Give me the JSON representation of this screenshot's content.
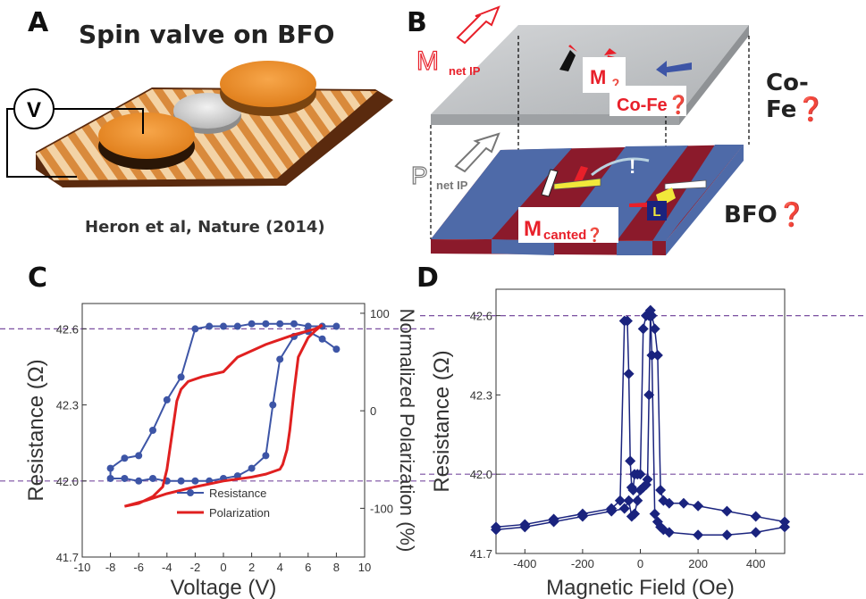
{
  "panels": {
    "a": {
      "letter": "A",
      "title": "Spin valve on BFO",
      "voltmeter_symbol": "V",
      "citation": "Heron et al, Nature (2014)"
    },
    "b": {
      "letter": "B",
      "label_m_net_main": "M",
      "label_m_net_sub": "net IP",
      "label_p_net_main": "P",
      "label_p_net_sub": "net IP",
      "label_m_cofe": "M",
      "label_m_cofe_sub": "❓",
      "label_cofe_red": "Co-Fe❓",
      "label_m_canted_main": "M",
      "label_m_canted_sub": "canted❓",
      "label_exclamation": "!",
      "label_l": "L",
      "layer_cofe": "Co-Fe❓",
      "layer_bfo": "BFO❓",
      "colors": {
        "red_label": "#e8202a",
        "cofe_layer": "#c4c6c8",
        "bfo_blue": "#4e6aa8",
        "bfo_red": "#8b1a2b"
      }
    },
    "c": {
      "letter": "C"
    },
    "d": {
      "letter": "D"
    }
  },
  "chart_data": [
    {
      "type": "line",
      "panel": "C",
      "xlabel": "Voltage (V)",
      "ylabel": "Resistance (Ω)",
      "y2label": "Normalized Polarization (%)",
      "xlim": [
        -10,
        10
      ],
      "ylim": [
        41.7,
        42.7
      ],
      "y2lim": [
        -150,
        110
      ],
      "xticks": [
        "-10",
        "-8",
        "-6",
        "-4",
        "-2",
        "0",
        "2",
        "4",
        "6",
        "8",
        "10"
      ],
      "yticks": [
        "41.7",
        "42.0",
        "42.3",
        "42.6"
      ],
      "y2ticks": [
        "-100",
        "0",
        "100"
      ],
      "reference_lines": [
        42.0,
        42.6
      ],
      "legend": {
        "position": "bottom-left",
        "entries": [
          "Resistance",
          "Polarization"
        ]
      },
      "series": [
        {
          "name": "Resistance",
          "color": "#3d55a6",
          "marker": "circle",
          "x": [
            8,
            7,
            6,
            5,
            4,
            3,
            2,
            1,
            0,
            -1,
            -2,
            -3,
            -4,
            -5,
            -6,
            -7,
            -8,
            -8,
            -7,
            -6,
            -5,
            -4,
            -3,
            -2,
            -1,
            0,
            1,
            2,
            3,
            3.5,
            4,
            5,
            6,
            7,
            8
          ],
          "y": [
            42.61,
            42.61,
            42.61,
            42.62,
            42.62,
            42.62,
            42.62,
            42.61,
            42.61,
            42.61,
            42.6,
            42.41,
            42.32,
            42.2,
            42.1,
            42.09,
            42.05,
            42.01,
            42.01,
            42.0,
            42.01,
            42.0,
            42.0,
            42.0,
            42.0,
            42.01,
            42.02,
            42.05,
            42.1,
            42.3,
            42.48,
            42.57,
            42.59,
            42.56,
            42.52
          ]
        },
        {
          "name": "Polarization",
          "color": "#e02020",
          "marker": "none",
          "x": [
            7,
            6.5,
            6,
            5.3,
            5,
            4.7,
            4.5,
            4.2,
            4,
            3.6,
            3,
            2,
            0,
            -2,
            -4,
            -5.5,
            -7,
            -6,
            -5,
            -4.3,
            -4,
            -3.6,
            -3.3,
            -3,
            -2.5,
            -1.5,
            0,
            1,
            3,
            5,
            6.5,
            7
          ],
          "y": [
            88,
            82,
            75,
            55,
            20,
            -20,
            -40,
            -55,
            -60,
            -62,
            -65,
            -68,
            -72,
            -78,
            -85,
            -92,
            -98,
            -95,
            -88,
            -78,
            -60,
            -20,
            10,
            22,
            30,
            35,
            40,
            55,
            68,
            78,
            84,
            88
          ]
        }
      ]
    },
    {
      "type": "scatter",
      "panel": "D",
      "xlabel": "Magnetic Field (Oe)",
      "ylabel": "Resistance (Ω)",
      "xlim": [
        -500,
        500
      ],
      "ylim": [
        41.7,
        42.7
      ],
      "xticks": [
        "-400",
        "-200",
        "0",
        "200",
        "400"
      ],
      "yticks": [
        "41.7",
        "42.0",
        "42.3",
        "42.6"
      ],
      "reference_lines": [
        42.0,
        42.6
      ],
      "series": [
        {
          "name": "",
          "color": "#1a237e",
          "marker": "diamond",
          "x": [
            -500,
            -400,
            -300,
            -200,
            -100,
            -70,
            -55,
            -45,
            -40,
            -35,
            -30,
            -25,
            -20,
            -10,
            0,
            10,
            20,
            30,
            40,
            50,
            60,
            70,
            80,
            100,
            150,
            200,
            300,
            400,
            500,
            500,
            400,
            300,
            200,
            100,
            80,
            70,
            60,
            50,
            40,
            35,
            30,
            25,
            20,
            10,
            0,
            -10,
            -20,
            -30,
            -40,
            -55,
            -100,
            -200,
            -300,
            -400,
            -500
          ],
          "y": [
            41.8,
            41.81,
            41.83,
            41.85,
            41.87,
            41.9,
            42.58,
            42.58,
            42.38,
            42.05,
            41.95,
            41.94,
            42.0,
            42.0,
            42.0,
            42.55,
            42.6,
            42.6,
            42.6,
            42.55,
            42.45,
            41.94,
            41.9,
            41.89,
            41.89,
            41.88,
            41.86,
            41.84,
            41.82,
            41.8,
            41.78,
            41.77,
            41.77,
            41.78,
            41.79,
            41.8,
            41.82,
            41.85,
            42.45,
            42.62,
            42.3,
            41.98,
            41.96,
            41.95,
            41.94,
            41.9,
            41.85,
            41.84,
            41.9,
            41.87,
            41.86,
            41.84,
            41.82,
            41.8,
            41.79
          ]
        }
      ]
    }
  ]
}
